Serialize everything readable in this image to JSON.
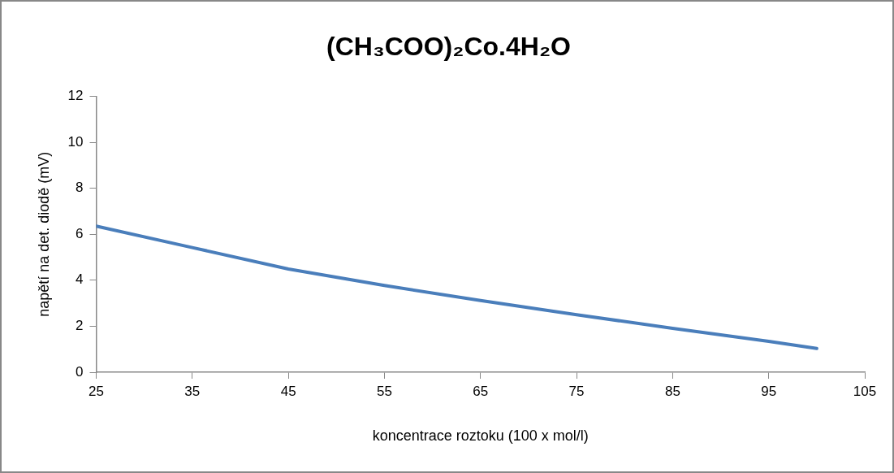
{
  "chart_data": {
    "type": "line",
    "title": "(CH₃COO)₂Co.4H₂O",
    "xlabel": "koncentrace roztoku (100 x mol/l)",
    "ylabel": "napětí na det. diodě (mV)",
    "x": [
      25,
      35,
      45,
      55,
      65,
      75,
      85,
      95,
      100
    ],
    "series": [
      {
        "color": "#4a7ebb",
        "values": [
          6.35,
          5.42,
          4.49,
          3.77,
          3.12,
          2.5,
          1.91,
          1.34,
          1.03
        ]
      }
    ],
    "xlim": [
      25,
      105
    ],
    "xticks": [
      25,
      35,
      45,
      55,
      65,
      75,
      85,
      95,
      105
    ],
    "ylim": [
      0,
      12
    ],
    "yticks": [
      0,
      2,
      4,
      6,
      8,
      10,
      12
    ],
    "grid": false,
    "legend": false,
    "marker": "none",
    "line_style": "solid"
  }
}
